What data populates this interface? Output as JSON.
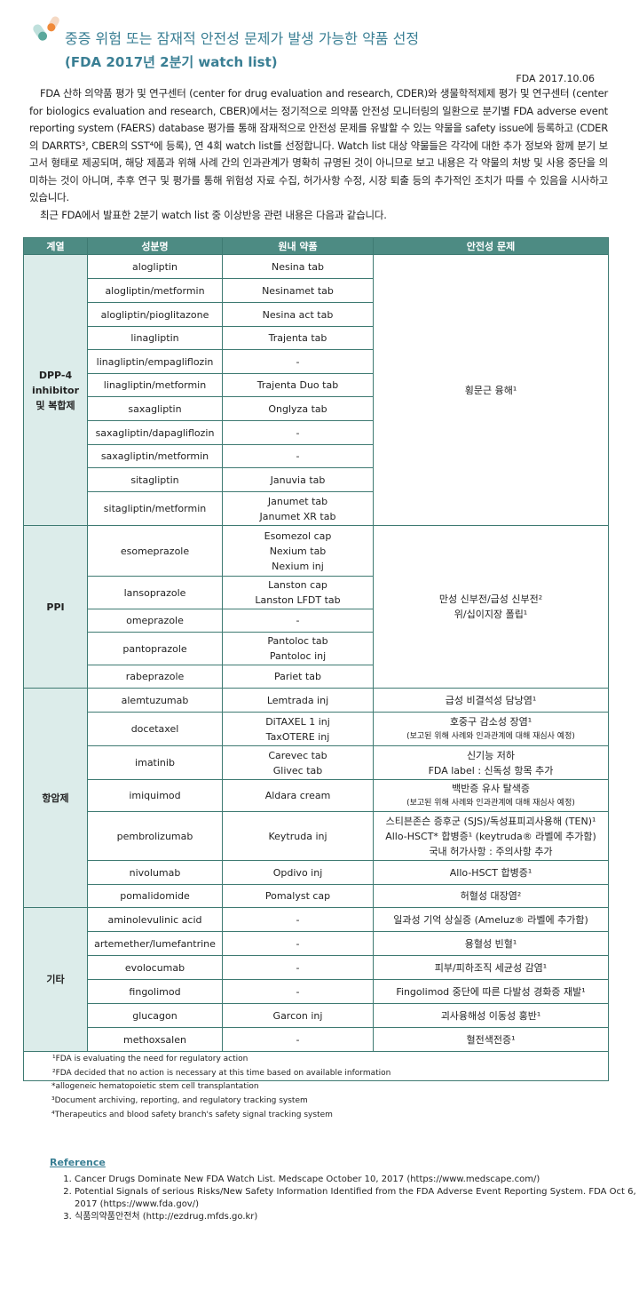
{
  "header": {
    "title": "중증 위험 또는 잠재적 안전성 문제가 발생 가능한 약품 선정",
    "subtitle": "(FDA 2017년 2분기 watch list)",
    "date": "FDA 2017.10.06"
  },
  "intro": [
    "FDA 산하 의약품 평가 및 연구센터 (center for drug evaluation and research, CDER)와 생물학적제제 평가 및 연구센터 (center for biologics evaluation and research, CBER)에서는 정기적으로 의약품 안전성 모니터링의 일환으로 분기별 FDA adverse event reporting system (FAERS) database 평가를 통해 잠재적으로 안전성 문제를 유발할 수 있는 약물을 safety issue에 등록하고 (CDER의 DARRTS³, CBER의 SST⁴에 등록), 연 4회 watch list를 선정합니다. Watch list 대상 약물들은 각각에 대한 추가 정보와 함께 분기 보고서 형태로 제공되며, 해당 제품과 위해 사례 간의 인과관계가 명확히 규명된 것이 아니므로 보고 내용은 각 약물의 처방 및 사용 중단을 의미하는 것이 아니며, 추후 연구 및 평가를 통해 위험성 자료 수집, 허가사항 수정, 시장 퇴출 등의 추가적인 조치가 따를 수 있음을 시사하고 있습니다.",
    "최근 FDA에서 발표한 2분기 watch list 중 이상반응 관련 내용은 다음과 같습니다."
  ],
  "table": {
    "headers": [
      "계열",
      "성분명",
      "원내 약품",
      "안전성 문제"
    ],
    "groups": [
      {
        "category": [
          "DPP-4",
          "inhibitor",
          "및 복합제"
        ],
        "safety": [
          "횡문근 융해¹"
        ],
        "rows": [
          [
            "alogliptin",
            [
              "Nesina tab"
            ]
          ],
          [
            "alogliptin/metformin",
            [
              "Nesinamet tab"
            ]
          ],
          [
            "alogliptin/pioglitazone",
            [
              "Nesina act tab"
            ]
          ],
          [
            "linagliptin",
            [
              "Trajenta tab"
            ]
          ],
          [
            "linagliptin/empagliflozin",
            [
              "-"
            ]
          ],
          [
            "linagliptin/metformin",
            [
              "Trajenta Duo tab"
            ]
          ],
          [
            "saxagliptin",
            [
              "Onglyza tab"
            ]
          ],
          [
            "saxagliptin/dapagliflozin",
            [
              "-"
            ]
          ],
          [
            "saxagliptin/metformin",
            [
              "-"
            ]
          ],
          [
            "sitagliptin",
            [
              "Januvia tab"
            ]
          ],
          [
            "sitagliptin/metformin",
            [
              "Janumet tab",
              "Janumet XR tab"
            ]
          ]
        ]
      },
      {
        "category": [
          "PPI"
        ],
        "safety": [
          "만성 신부전/급성 신부전²",
          "위/십이지장 폴립¹"
        ],
        "rows": [
          [
            "esomeprazole",
            [
              "Esomezol cap",
              "Nexium tab",
              "Nexium inj"
            ]
          ],
          [
            "lansoprazole",
            [
              "Lanston cap",
              "Lanston LFDT tab"
            ]
          ],
          [
            "omeprazole",
            [
              "-"
            ]
          ],
          [
            "pantoprazole",
            [
              "Pantoloc tab",
              "Pantoloc inj"
            ]
          ],
          [
            "rabeprazole",
            [
              "Pariet tab"
            ]
          ]
        ]
      },
      {
        "category": [
          "항암제"
        ],
        "rows": [
          [
            "alemtuzumab",
            [
              "Lemtrada inj"
            ],
            [
              "급성 비결석성 담낭염¹"
            ]
          ],
          [
            "docetaxel",
            [
              "DiTAXEL 1 inj",
              "TaxOTERE inj"
            ],
            [
              "호중구 감소성 장염¹"
            ],
            "(보고된 위해 사례와 인과관계에 대해 재심사 예정)"
          ],
          [
            "imatinib",
            [
              "Carevec tab",
              "Glivec tab"
            ],
            [
              "신기능 저하",
              "FDA label : 신독성 항목 추가"
            ]
          ],
          [
            "imiquimod",
            [
              "Aldara cream"
            ],
            [
              "백반증 유사 탈색증"
            ],
            "(보고된 위해 사례와 인과관계에 대해 재심사 예정)"
          ],
          [
            "pembrolizumab",
            [
              "Keytruda inj"
            ],
            [
              "스티븐존슨 증후군 (SJS)/독성표피괴사용해 (TEN)¹",
              "Allo-HSCT* 합병증¹ (keytruda® 라벨에 추가함)",
              "국내 허가사항 : 주의사항 추가"
            ]
          ],
          [
            "nivolumab",
            [
              "Opdivo inj"
            ],
            [
              "Allo-HSCT 합병증¹"
            ]
          ],
          [
            "pomalidomide",
            [
              "Pomalyst cap"
            ],
            [
              "허혈성 대장염²"
            ]
          ]
        ]
      },
      {
        "category": [
          "기타"
        ],
        "rows": [
          [
            "aminolevulinic acid",
            [
              "-"
            ],
            [
              "일과성 기억 상실증 (Ameluz® 라벨에 추가함)"
            ]
          ],
          [
            "artemether/lumefantrine",
            [
              "-"
            ],
            [
              "용혈성 빈혈¹"
            ]
          ],
          [
            "evolocumab",
            [
              "-"
            ],
            [
              "피부/피하조직 세균성 감염¹"
            ]
          ],
          [
            "fingolimod",
            [
              "-"
            ],
            [
              "Fingolimod 중단에 따른 다발성 경화증 재발¹"
            ]
          ],
          [
            "glucagon",
            [
              "Garcon inj"
            ],
            [
              "괴사융해성 이동성 홍반¹"
            ]
          ],
          [
            "methoxsalen",
            [
              "-"
            ],
            [
              "혈전색전증¹"
            ]
          ]
        ]
      }
    ],
    "footnotes": [
      "¹FDA is evaluating the need for regulatory action",
      "²FDA decided that no action is necessary at this time based on available information"
    ]
  },
  "notes": [
    "*allogeneic hematopoietic stem cell transplantation",
    "³Document archiving, reporting, and regulatory tracking system",
    "⁴Therapeutics and blood safety branch's safety signal tracking system"
  ],
  "reference": {
    "heading": "Reference",
    "items": [
      "Cancer Drugs Dominate New FDA Watch List. Medscape October 10, 2017 (https://www.medscape.com/)",
      "Potential Signals of serious Risks/New Safety Information Identified from the FDA Adverse Event Reporting System. FDA Oct 6, 2017 (https://www.fda.gov/)",
      "식품의약품안전처 (http://ezdrug.mfds.go.kr)"
    ]
  },
  "colors": {
    "title": "#3a7f94",
    "header_bg": "#4d8b83",
    "category_bg": "#dcecea",
    "border": "#3e7a72"
  },
  "icons": {
    "logo": "capsule-icon"
  }
}
